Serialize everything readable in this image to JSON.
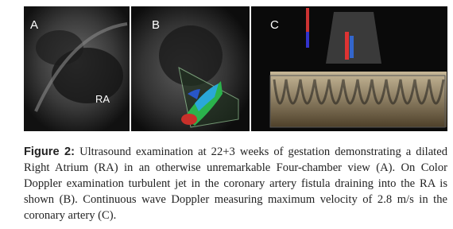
{
  "figure": {
    "panels": [
      {
        "label": "A",
        "annotation": "RA"
      },
      {
        "label": "B"
      },
      {
        "label": "C"
      }
    ],
    "caption": {
      "label": "Figure 2:",
      "text": "Ultrasound examination at 22+3 weeks of gestation demonstrating a dilated Right Atrium (RA) in an otherwise unremarkable Four-chamber view (A). On Color Doppler examination turbulent jet in the coronary artery fistula draining into the RA is shown (B). Continuous wave Doppler measuring maximum velocity of 2.8 m/s in the coronary artery (C)."
    }
  }
}
